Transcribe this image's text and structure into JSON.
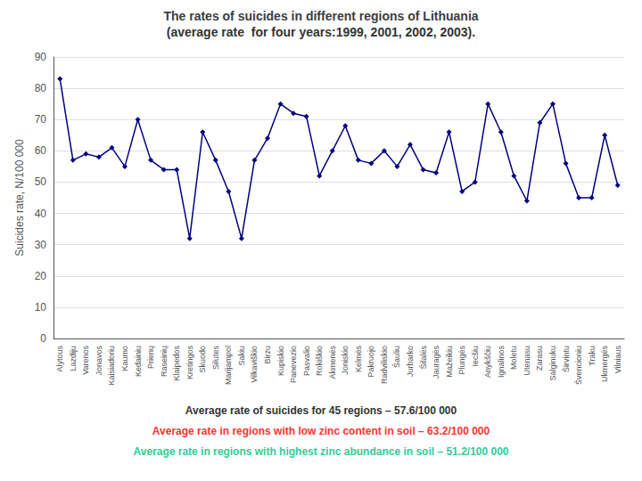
{
  "chart_data": {
    "type": "line",
    "title": "The rates of suicides in different regions of Lithuania",
    "subtitle": "(average rate  for four years:1999, 2001, 2002, 2003).",
    "y_label": "Suicides rate, N/100 000",
    "categories": [
      "Alytous",
      "Lazdiju",
      "Varenos",
      "Jonavos",
      "Kaisiadoriu",
      "Kaumo",
      "Kedainiu",
      "Prienų",
      "Raseinių",
      "Klaipedos",
      "Kretingos",
      "Skuodo",
      "Silutes",
      "Marijampol",
      "Sakiu",
      "Vilkaviškio",
      "Birzu",
      "Kupiskio",
      "Panevezio",
      "Pasvalio",
      "Rokiškio",
      "Akmenės",
      "Joniskio",
      "Kelmės",
      "Pakruojo",
      "Radviliskio",
      "Šauliu",
      "Jurbarko",
      "Šilalės",
      "Jauragės",
      "Mažeikiu",
      "Plungės",
      "Iecšiu",
      "Anykščiu",
      "Ignalinos",
      "Moletu",
      "Utenasu",
      "Zarasu",
      "Salginuku",
      "Širvintu",
      "Švencioniu",
      "Traku",
      "Ukmergės",
      "Vilniaus"
    ],
    "values": [
      83,
      57,
      59,
      58,
      61,
      55,
      70,
      57,
      54,
      54,
      32,
      66,
      57,
      47,
      32,
      57,
      64,
      75,
      72,
      71,
      52,
      60,
      68,
      57,
      56,
      60,
      55,
      62,
      54,
      53,
      66,
      47,
      50,
      75,
      66,
      52,
      44,
      69,
      75,
      56,
      45,
      45,
      65,
      49
    ],
    "color": "#000080",
    "marker": "diamond",
    "ylim": [
      0,
      90
    ],
    "yticks": [
      0,
      10,
      20,
      30,
      40,
      50,
      60,
      70,
      80,
      90
    ],
    "grid": true,
    "annotations": [
      {
        "text": "Average rate of suicides for 45 regions – 57.6/100 000"
      },
      {
        "text": "Average rate in regions with low zinc content in soil – 63.2/100 000",
        "color": "#ff3333"
      },
      {
        "text": "Average rate in regions with highest zinc abundance in soil – 51.2/100 000",
        "color": "#33cc99"
      }
    ]
  }
}
